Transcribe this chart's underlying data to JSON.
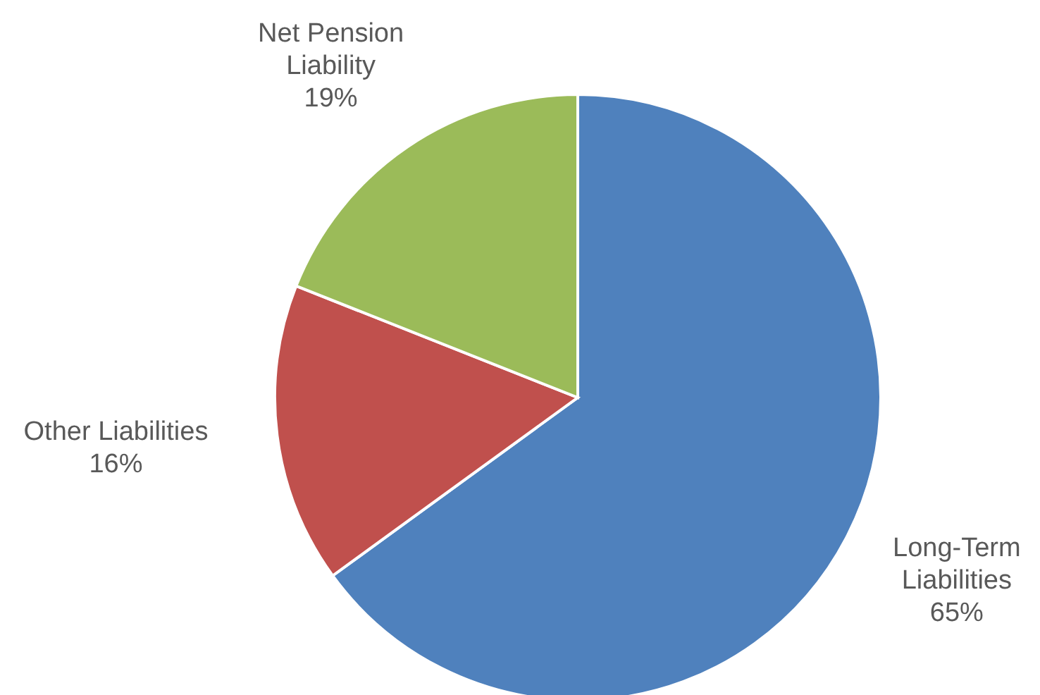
{
  "chart_data": {
    "type": "pie",
    "categories": [
      "Long-Term Liabilities",
      "Other Liabilities",
      "Net Pension Liability"
    ],
    "values": [
      65,
      16,
      19
    ],
    "colors": [
      "#4f81bd",
      "#c0504d",
      "#9bbb59"
    ],
    "value_labels": [
      "65%",
      "16%",
      "19%"
    ],
    "legend": false
  }
}
